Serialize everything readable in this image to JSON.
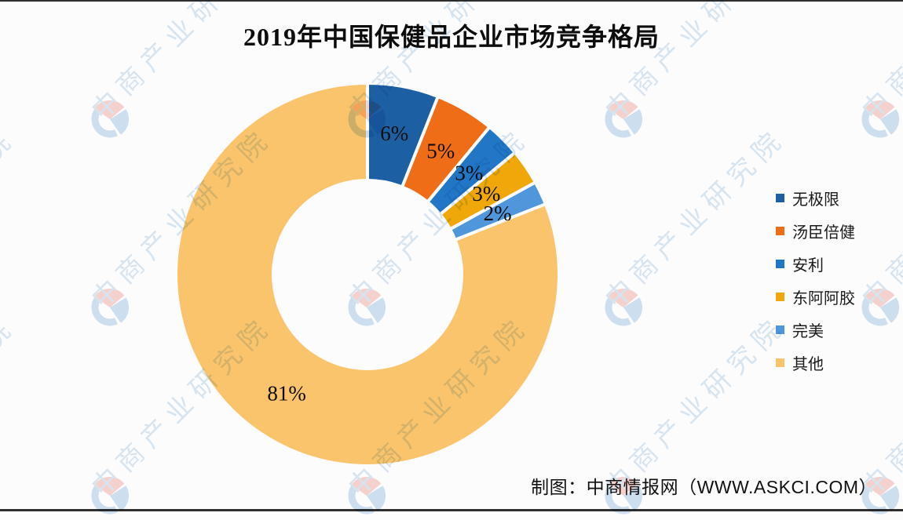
{
  "page": {
    "title": "2019年中国保健品企业市场竞争格局",
    "caption": "制图：中商情报网（WWW.ASKCI.COM）"
  },
  "watermark": {
    "text": "中商产业研究院",
    "text_color": "#b9d3e8",
    "logo_pink": "#f2b0a7",
    "logo_blue": "#a9c9e4"
  },
  "chart_data": {
    "type": "pie",
    "subtype": "donut",
    "title": "2019年中国保健品企业市场竞争格局",
    "units": "percent",
    "start_angle_deg": 0,
    "direction": "clockwise",
    "inner_radius_ratio": 0.49,
    "grid": false,
    "legend_position": "right",
    "series": [
      {
        "name": "无极限",
        "value": 6,
        "label": "6%",
        "color": "#1d5fa3"
      },
      {
        "name": "汤臣倍健",
        "value": 5,
        "label": "5%",
        "color": "#ef6d17"
      },
      {
        "name": "安利",
        "value": 3,
        "label": "3%",
        "color": "#2177c5"
      },
      {
        "name": "东阿阿胶",
        "value": 3,
        "label": "3%",
        "color": "#efa70a"
      },
      {
        "name": "完美",
        "value": 2,
        "label": "2%",
        "color": "#4f96db"
      },
      {
        "name": "其他",
        "value": 81,
        "label": "81%",
        "color": "#fac46d"
      }
    ]
  }
}
